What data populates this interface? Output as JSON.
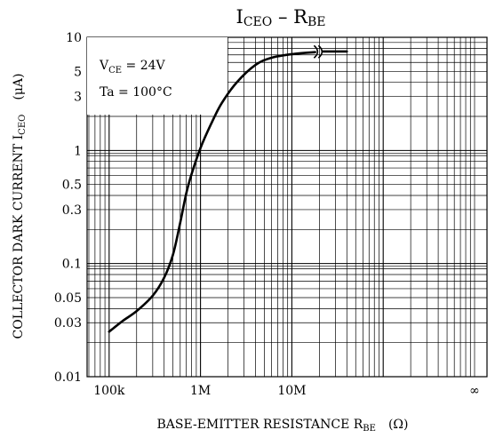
{
  "chart_data": {
    "type": "line",
    "title": {
      "main": "I",
      "sub": "CEO",
      "sep": " – ",
      "main2": "R",
      "sub2": "BE"
    },
    "ylabel": {
      "text": "COLLECTOR DARK CURRENT   I",
      "sub": "CEO",
      "unit": "(μA)"
    },
    "xlabel": {
      "text": "BASE-EMITTER RESISTANCE   R",
      "sub": "BE",
      "unit": "(Ω)"
    },
    "x_scale": "log",
    "y_scale": "log",
    "xlim": [
      20000,
      1000000000
    ],
    "ylim": [
      0.01,
      10
    ],
    "x_ticks": [
      {
        "value": 100000,
        "label": "100k"
      },
      {
        "value": 1000000,
        "label": "1M"
      },
      {
        "value": 10000000,
        "label": "10M"
      },
      {
        "value": 1000000000,
        "label": "∞"
      }
    ],
    "y_ticks": [
      {
        "value": 10,
        "label": "10"
      },
      {
        "value": 5,
        "label": "5"
      },
      {
        "value": 3,
        "label": "3"
      },
      {
        "value": 1,
        "label": "1"
      },
      {
        "value": 0.5,
        "label": "0.5"
      },
      {
        "value": 0.3,
        "label": "0.3"
      },
      {
        "value": 0.1,
        "label": "0.1"
      },
      {
        "value": 0.05,
        "label": "0.05"
      },
      {
        "value": 0.03,
        "label": "0.03"
      },
      {
        "value": 0.01,
        "label": "0.01"
      }
    ],
    "grid": true,
    "series": [
      {
        "x": [
          100000,
          140000,
          200000,
          300000,
          400000,
          500000,
          600000,
          700000,
          800000,
          1000000,
          1300000,
          1700000,
          2500000,
          4000000,
          6000000,
          10000000,
          18000000
        ],
        "y": [
          0.025,
          0.031,
          0.038,
          0.052,
          0.075,
          0.12,
          0.23,
          0.42,
          0.62,
          1.05,
          1.7,
          2.6,
          4.0,
          5.7,
          6.6,
          7.1,
          7.4
        ]
      },
      {
        "x": [
          22000000,
          40000000
        ],
        "y": [
          7.5,
          7.5
        ]
      }
    ],
    "break_marker": {
      "x": 20000000,
      "y": 7.45
    },
    "legend": {
      "placement": "top-left",
      "line1": {
        "main": "V",
        "sub": "CE",
        "rest": " = 24V"
      },
      "line2": "Ta = 100°C"
    }
  }
}
